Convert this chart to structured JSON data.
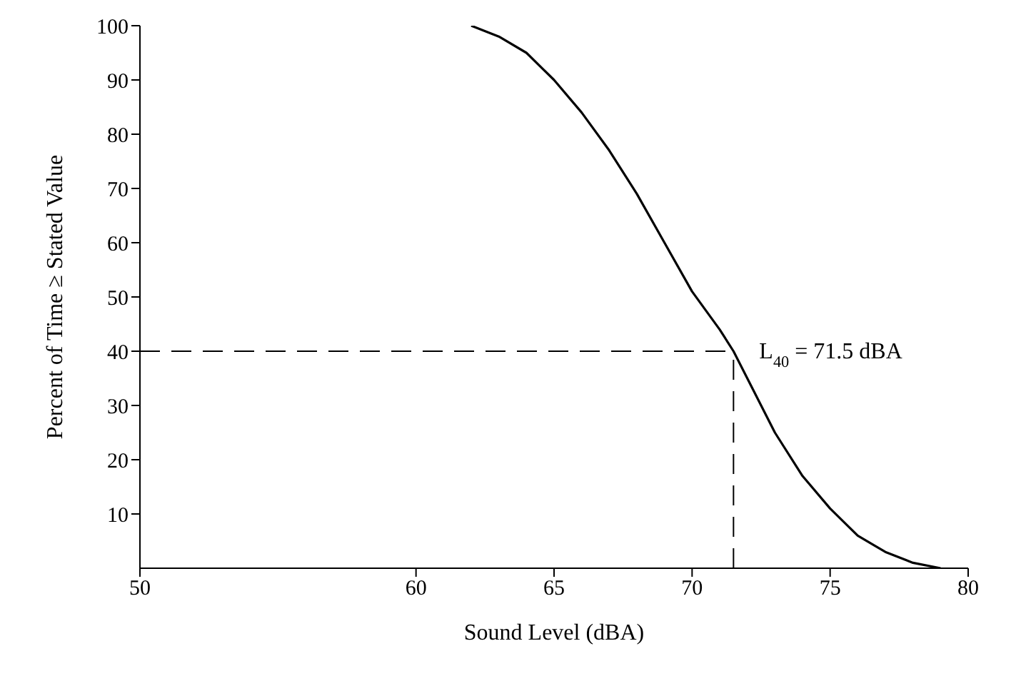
{
  "chart_data": {
    "type": "line",
    "xlabel": "Sound Level (dBA)",
    "ylabel": "Percent of Time ≥ Stated Value",
    "x": [
      62,
      63,
      64,
      65,
      66,
      67,
      68,
      69,
      70,
      71,
      71.5,
      72,
      72.5,
      73,
      74,
      75,
      76,
      77,
      78,
      79
    ],
    "series": [
      {
        "color": "#000000",
        "values": [
          100,
          98,
          95,
          90,
          84,
          77,
          69,
          60,
          51,
          44,
          40,
          35,
          30,
          25,
          17,
          11,
          6,
          3,
          1,
          0
        ]
      }
    ],
    "xlim": [
      50,
      80
    ],
    "xticks": [
      50,
      60,
      65,
      70,
      75,
      80
    ],
    "ylim": [
      0,
      100
    ],
    "yticks": [
      10,
      20,
      30,
      40,
      50,
      60,
      70,
      80,
      90,
      100
    ],
    "ref_lines": [
      {
        "axis": "y",
        "value": 40,
        "line_style": "dashed",
        "color": "#000000"
      },
      {
        "axis": "x",
        "value": 71.5,
        "line_style": "dashed",
        "color": "#000000"
      }
    ],
    "annotations": [
      {
        "text": "L$_{40}$ = 71.5 dBA",
        "x": 71.5,
        "y": 40
      }
    ],
    "grid": false,
    "legend": false,
    "marker": "none",
    "line_style": "solid"
  }
}
